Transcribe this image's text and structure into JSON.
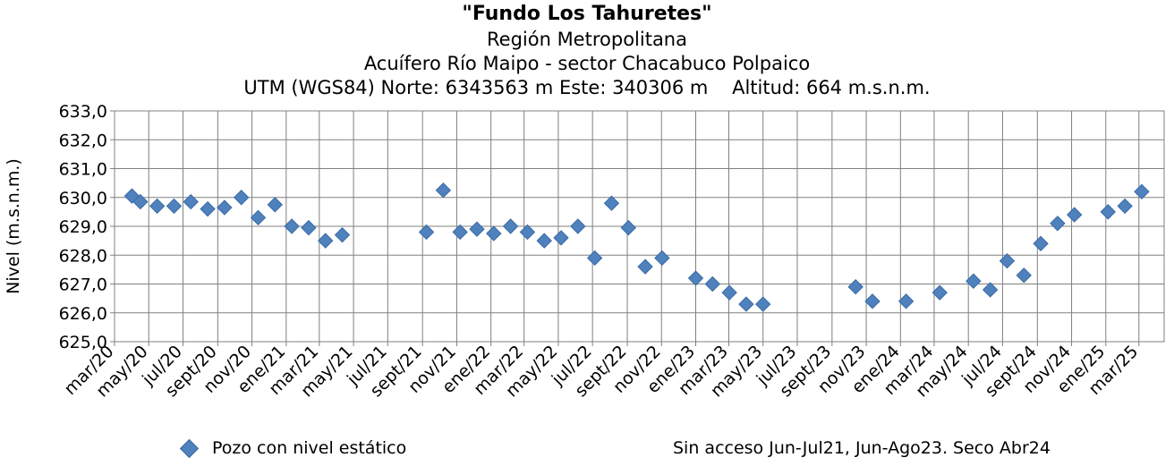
{
  "chart_data": {
    "type": "scatter",
    "title": "\"Fundo Los Tahuretes\"",
    "subtitle_lines": [
      "Región Metropolitana",
      "Acuífero Río Maipo - sector Chacabuco Polpaico",
      "UTM (WGS84) Norte: 6343563 m Este: 340306 m    Altitud: 664 m.s.n.m."
    ],
    "ylabel": "Nivel (m.s.n.m.)",
    "xlabel": "",
    "ylim": [
      625.0,
      633.0
    ],
    "yticks": [
      "625,0",
      "626,0",
      "627,0",
      "628,0",
      "629,0",
      "630,0",
      "631,0",
      "632,0",
      "633,0"
    ],
    "xlim": [
      "2020-03-01",
      "2025-04-15"
    ],
    "xticks": [
      "mar/20",
      "may/20",
      "jul/20",
      "sept/20",
      "nov/20",
      "ene/21",
      "mar/21",
      "may/21",
      "jul/21",
      "sept/21",
      "nov/21",
      "ene/22",
      "mar/22",
      "may/22",
      "jul/22",
      "sept/22",
      "nov/22",
      "ene/23",
      "mar/23",
      "may/23",
      "jul/23",
      "sept/23",
      "nov/23",
      "ene/24",
      "mar/24",
      "may/24",
      "jul/24",
      "sept/24",
      "nov/24",
      "ene/25",
      "mar/25"
    ],
    "grid": true,
    "legend_position": "bottom-left",
    "series": [
      {
        "name": "Pozo con nivel estático",
        "color": "#4F81BD",
        "marker": "diamond",
        "points": [
          [
            "2020-04-01",
            630.05
          ],
          [
            "2020-04-16",
            629.85
          ],
          [
            "2020-05-16",
            629.7
          ],
          [
            "2020-06-15",
            629.7
          ],
          [
            "2020-07-15",
            629.85
          ],
          [
            "2020-08-14",
            629.6
          ],
          [
            "2020-09-13",
            629.65
          ],
          [
            "2020-10-13",
            630.0
          ],
          [
            "2020-11-12",
            629.3
          ],
          [
            "2020-12-12",
            629.75
          ],
          [
            "2021-01-11",
            629.0
          ],
          [
            "2021-02-10",
            628.95
          ],
          [
            "2021-03-12",
            628.5
          ],
          [
            "2021-04-11",
            628.7
          ],
          [
            "2021-09-08",
            628.8
          ],
          [
            "2021-10-08",
            630.25
          ],
          [
            "2021-11-07",
            628.8
          ],
          [
            "2021-12-07",
            628.9
          ],
          [
            "2022-01-06",
            628.75
          ],
          [
            "2022-02-05",
            629.0
          ],
          [
            "2022-03-07",
            628.8
          ],
          [
            "2022-04-06",
            628.5
          ],
          [
            "2022-05-06",
            628.6
          ],
          [
            "2022-06-05",
            629.0
          ],
          [
            "2022-07-05",
            627.9
          ],
          [
            "2022-08-04",
            629.8
          ],
          [
            "2022-09-03",
            628.95
          ],
          [
            "2022-10-03",
            627.6
          ],
          [
            "2022-11-02",
            627.9
          ],
          [
            "2023-01-01",
            627.2
          ],
          [
            "2023-01-31",
            627.0
          ],
          [
            "2023-03-02",
            626.7
          ],
          [
            "2023-04-01",
            626.3
          ],
          [
            "2023-05-01",
            626.3
          ],
          [
            "2023-10-13",
            626.9
          ],
          [
            "2023-11-12",
            626.4
          ],
          [
            "2024-01-11",
            626.4
          ],
          [
            "2024-03-11",
            626.7
          ],
          [
            "2024-05-10",
            627.1
          ],
          [
            "2024-06-09",
            626.8
          ],
          [
            "2024-07-09",
            627.8
          ],
          [
            "2024-08-08",
            627.3
          ],
          [
            "2024-09-07",
            628.4
          ],
          [
            "2024-10-07",
            629.1
          ],
          [
            "2024-11-06",
            629.4
          ],
          [
            "2025-01-05",
            629.5
          ],
          [
            "2025-02-04",
            629.7
          ],
          [
            "2025-03-06",
            630.2
          ]
        ]
      }
    ],
    "annotation": "Sin acceso Jun-Jul21, Jun-Ago23. Seco Abr24"
  }
}
